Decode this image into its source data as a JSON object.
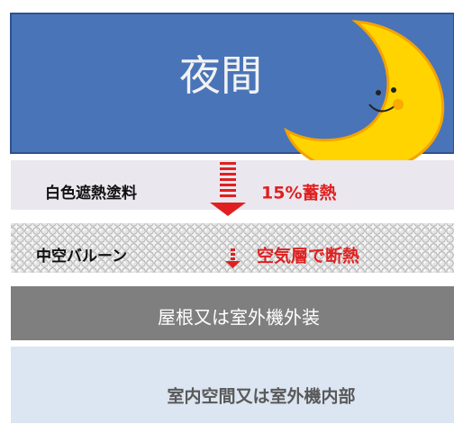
{
  "header": {
    "title": "夜間"
  },
  "layers": [
    {
      "label": "白色遮熱塗料",
      "effect": "15%蓄熱"
    },
    {
      "label": "中空バルーン",
      "effect": "空気層で断熱"
    },
    {
      "label": "屋根又は室外機外装"
    },
    {
      "label": "室内空間又は室外機内部"
    }
  ]
}
